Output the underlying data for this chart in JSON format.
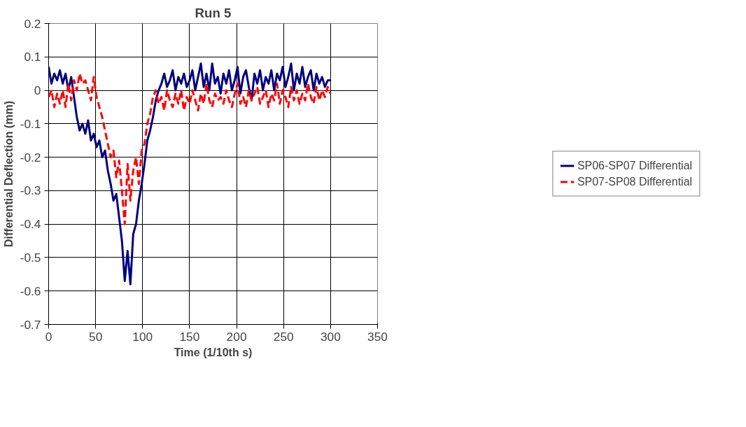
{
  "chart_data": {
    "type": "line",
    "title": "Run 5",
    "xlabel": "Time (1/10th s)",
    "ylabel": "Differential Deflection (mm)",
    "x": [
      0,
      3,
      6,
      9,
      12,
      15,
      18,
      21,
      24,
      27,
      30,
      33,
      36,
      39,
      42,
      45,
      48,
      51,
      54,
      57,
      60,
      63,
      66,
      69,
      72,
      75,
      78,
      81,
      84,
      87,
      90,
      93,
      96,
      99,
      102,
      105,
      108,
      111,
      114,
      117,
      120,
      123,
      126,
      129,
      132,
      135,
      138,
      141,
      144,
      147,
      150,
      153,
      156,
      159,
      162,
      165,
      168,
      171,
      174,
      177,
      180,
      183,
      186,
      189,
      192,
      195,
      198,
      201,
      204,
      207,
      210,
      213,
      216,
      219,
      222,
      225,
      228,
      231,
      234,
      237,
      240,
      243,
      246,
      249,
      252,
      255,
      258,
      261,
      264,
      267,
      270,
      273,
      276,
      279,
      282,
      285,
      288,
      291,
      294,
      297,
      300
    ],
    "series": [
      {
        "name": "SP06-SP07 Differential",
        "color": "#000080",
        "line_style": "solid",
        "values": [
          0.07,
          0.02,
          0.05,
          0.03,
          0.06,
          0.02,
          0.05,
          0.0,
          0.04,
          -0.02,
          -0.08,
          -0.12,
          -0.1,
          -0.13,
          -0.09,
          -0.15,
          -0.13,
          -0.17,
          -0.15,
          -0.2,
          -0.18,
          -0.24,
          -0.28,
          -0.33,
          -0.31,
          -0.38,
          -0.45,
          -0.57,
          -0.48,
          -0.58,
          -0.43,
          -0.4,
          -0.33,
          -0.28,
          -0.22,
          -0.15,
          -0.12,
          -0.08,
          -0.03,
          0.0,
          0.02,
          0.05,
          0.01,
          0.03,
          0.06,
          0.0,
          0.04,
          0.02,
          0.05,
          0.01,
          0.03,
          0.06,
          0.0,
          0.04,
          0.08,
          0.01,
          0.05,
          0.0,
          0.08,
          0.02,
          0.04,
          -0.01,
          0.05,
          0.02,
          0.06,
          0.0,
          0.03,
          0.07,
          -0.01,
          0.04,
          0.06,
          0.01,
          -0.03,
          0.05,
          0.02,
          0.06,
          0.0,
          0.04,
          0.02,
          0.06,
          0.0,
          0.05,
          0.03,
          0.07,
          0.01,
          0.04,
          0.08,
          0.0,
          0.05,
          0.02,
          0.07,
          0.01,
          0.04,
          0.06,
          0.0,
          0.05,
          0.02,
          0.04,
          0.01,
          0.03,
          0.03
        ]
      },
      {
        "name": "SP07-SP08 Differential",
        "color": "#ff0000",
        "line_style": "dashed",
        "values": [
          -0.02,
          0.0,
          -0.05,
          -0.01,
          -0.04,
          0.0,
          -0.05,
          0.02,
          -0.03,
          0.03,
          0.0,
          0.05,
          0.02,
          0.03,
          0.0,
          -0.03,
          0.04,
          -0.02,
          -0.05,
          -0.08,
          -0.12,
          -0.16,
          -0.2,
          -0.18,
          -0.26,
          -0.21,
          -0.3,
          -0.4,
          -0.22,
          -0.33,
          -0.24,
          -0.2,
          -0.28,
          -0.18,
          -0.16,
          -0.1,
          -0.07,
          -0.02,
          0.0,
          -0.04,
          -0.02,
          -0.06,
          0.0,
          -0.03,
          -0.05,
          -0.01,
          -0.04,
          0.0,
          -0.06,
          -0.02,
          -0.04,
          0.0,
          -0.03,
          -0.06,
          -0.01,
          -0.04,
          0.02,
          -0.03,
          -0.05,
          -0.01,
          -0.03,
          -0.02,
          -0.04,
          0.0,
          -0.03,
          -0.05,
          -0.01,
          0.02,
          -0.04,
          -0.02,
          -0.05,
          0.0,
          -0.03,
          -0.01,
          0.01,
          -0.04,
          -0.02,
          0.0,
          -0.05,
          -0.01,
          -0.03,
          0.02,
          -0.04,
          0.0,
          -0.02,
          -0.05,
          0.01,
          -0.03,
          0.0,
          -0.04,
          -0.01,
          -0.03,
          0.02,
          -0.02,
          -0.04,
          0.01,
          -0.03,
          0.0,
          -0.02,
          0.01,
          -0.01
        ]
      }
    ],
    "xlim": [
      0,
      350
    ],
    "xticks": [
      0,
      50,
      100,
      150,
      200,
      250,
      300,
      350
    ],
    "ylim": [
      -0.7,
      0.2
    ],
    "yticks": [
      -0.7,
      -0.6,
      -0.5,
      -0.4,
      -0.3,
      -0.2,
      -0.1,
      0,
      0.1,
      0.2
    ],
    "grid": true,
    "legend": "right"
  }
}
